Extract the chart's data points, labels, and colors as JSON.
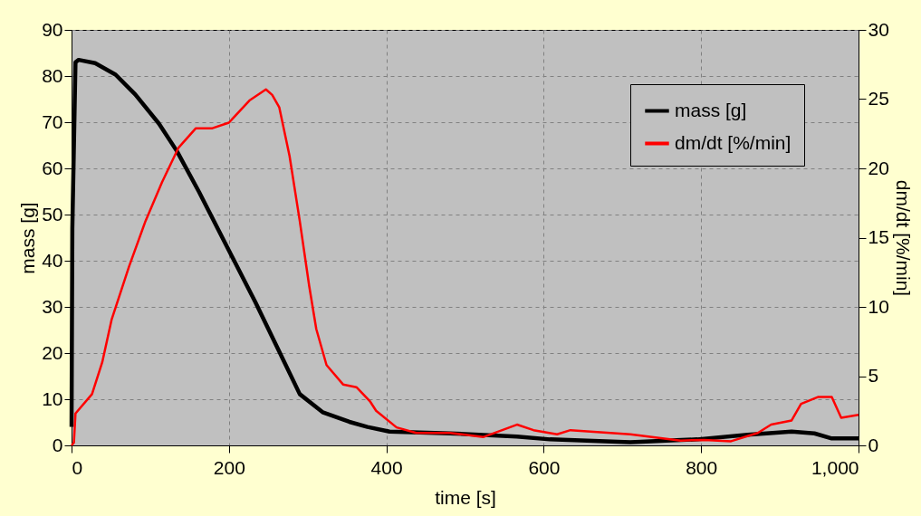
{
  "chart_data": {
    "type": "line",
    "xlabel": "time [s]",
    "ylabel": "mass [g]",
    "y2label": "dm/dt [%/min]",
    "xlim": [
      0,
      1000
    ],
    "xticks": [
      0,
      200,
      400,
      600,
      800,
      {
        "value": 1000,
        "label": "1,000"
      }
    ],
    "ylim": [
      0,
      90
    ],
    "yticks": [
      0,
      10,
      20,
      30,
      40,
      50,
      60,
      70,
      80,
      90
    ],
    "y2lim": [
      0,
      30
    ],
    "y2ticks": [
      0,
      5,
      10,
      15,
      20,
      25,
      30
    ],
    "grid": true,
    "legend": "top right",
    "marker": "none",
    "line_style": "solid",
    "series": [
      {
        "name": "mass [g]",
        "color": "#000000",
        "x": [
          0,
          1,
          5,
          9,
          30,
          56,
          81,
          111,
          134,
          162,
          200,
          234,
          264,
          290,
          319,
          353,
          376,
          404,
          481,
          566,
          608,
          710,
          795,
          859,
          915,
          944,
          966,
          1000
        ],
        "values": [
          4,
          47,
          83,
          83.5,
          82.8,
          80.3,
          76,
          69.7,
          63.7,
          54.9,
          42.2,
          30.9,
          20.3,
          11.1,
          7.2,
          5.1,
          4,
          3,
          2.6,
          1.9,
          1.3,
          0.7,
          1.3,
          2.3,
          3,
          2.6,
          1.5,
          1.5
        ]
      },
      {
        "name": "dm/dt [%/min]",
        "color": "#ff0000",
        "axis": "y2",
        "x": [
          0,
          3,
          5,
          26,
          39,
          51,
          73,
          94,
          115,
          136,
          158,
          179,
          200,
          226,
          247,
          255,
          264,
          277,
          290,
          302,
          311,
          324,
          345,
          362,
          379,
          387,
          413,
          438,
          481,
          523,
          566,
          587,
          617,
          634,
          710,
          774,
          804,
          838,
          872,
          889,
          915,
          927,
          949,
          966,
          978,
          1000
        ],
        "values": [
          0,
          0.2,
          2.3,
          3.7,
          6,
          9.1,
          12.9,
          16.2,
          19,
          21.5,
          22.9,
          22.9,
          23.3,
          24.9,
          25.7,
          25.3,
          24.4,
          20.9,
          16.2,
          11.5,
          8.4,
          5.8,
          4.4,
          4.2,
          3.2,
          2.5,
          1.3,
          0.9,
          0.9,
          0.6,
          1.5,
          1.1,
          0.8,
          1.1,
          0.8,
          0.35,
          0.4,
          0.3,
          0.9,
          1.5,
          1.8,
          3,
          3.5,
          3.5,
          2,
          2.2
        ]
      }
    ]
  }
}
